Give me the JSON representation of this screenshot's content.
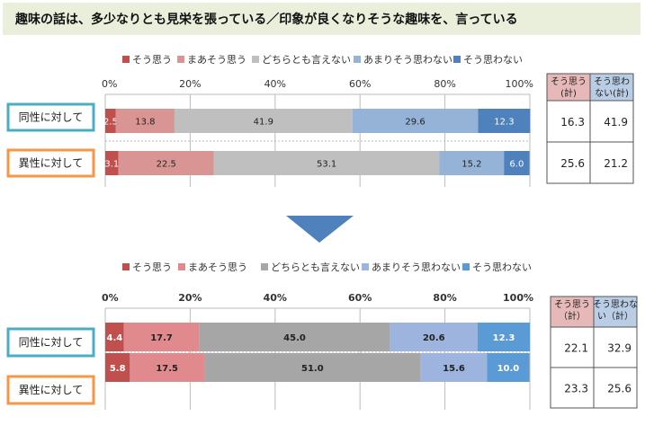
{
  "title": "趣味の話は、多少なりとも見栄を張っている／印象が良くなりそうな趣味を、言っている",
  "colors": {
    "title_bg": "#eaefdc",
    "series": [
      "#c0504d",
      "#d99593",
      "#bfbfbf",
      "#95b3d7",
      "#4f81bd"
    ],
    "series_bottom": [
      "#c0504d",
      "#e08a8d",
      "#a6a6a6",
      "#9cb4de",
      "#5b9bd5"
    ],
    "row_box_top": "#4bacc6",
    "row_box_bottom": "#f79646",
    "table_head_agree": "#e6b9b8",
    "table_head_disagree": "#b9cde5",
    "arrow": "#4f81bd"
  },
  "chart_data": [
    {
      "type": "bar",
      "stacked": true,
      "orientation": "horizontal",
      "legend": [
        "そう思う",
        "まあそう思う",
        "どちらとも言えない",
        "あまりそう思わない",
        "そう思わない"
      ],
      "xlim": [
        0,
        100
      ],
      "x_ticks": [
        "0%",
        "20%",
        "40%",
        "60%",
        "80%",
        "100%"
      ],
      "categories": [
        "同性に対して",
        "異性に対して"
      ],
      "series": [
        {
          "name": "そう思う",
          "values": [
            2.5,
            3.1
          ]
        },
        {
          "name": "まあそう思う",
          "values": [
            13.8,
            22.5
          ]
        },
        {
          "name": "どちらとも言えない",
          "values": [
            41.9,
            53.1
          ]
        },
        {
          "name": "あまりそう思わない",
          "values": [
            29.6,
            15.2
          ]
        },
        {
          "name": "そう思わない",
          "values": [
            12.3,
            6.0
          ]
        }
      ],
      "labels": [
        [
          "2.5",
          "13.8",
          "41.9",
          "29.6",
          "12.3"
        ],
        [
          "3.1",
          "22.5",
          "53.1",
          "15.2",
          "6.0"
        ]
      ],
      "table": {
        "headers": [
          "そう思う\n(計)",
          "そう思わ\nない(計)"
        ],
        "rows": [
          [
            "16.3",
            "41.9"
          ],
          [
            "25.6",
            "21.2"
          ]
        ]
      }
    },
    {
      "type": "bar",
      "stacked": true,
      "orientation": "horizontal",
      "legend": [
        "そう思う",
        "まあそう思う",
        "どちらとも言えない",
        "あまりそう思わない",
        "そう思わない"
      ],
      "xlim": [
        0,
        100
      ],
      "x_ticks": [
        "0%",
        "20%",
        "40%",
        "60%",
        "80%",
        "100%"
      ],
      "categories": [
        "同性に対して",
        "異性に対して"
      ],
      "series": [
        {
          "name": "そう思う",
          "values": [
            4.4,
            5.8
          ]
        },
        {
          "name": "まあそう思う",
          "values": [
            17.7,
            17.5
          ]
        },
        {
          "name": "どちらとも言えない",
          "values": [
            45.0,
            51.0
          ]
        },
        {
          "name": "あまりそう思わない",
          "values": [
            20.6,
            15.6
          ]
        },
        {
          "name": "そう思わない",
          "values": [
            12.3,
            10.0
          ]
        }
      ],
      "labels": [
        [
          "4.4",
          "17.7",
          "45.0",
          "20.6",
          "12.3"
        ],
        [
          "5.8",
          "17.5",
          "51.0",
          "15.6",
          "10.0"
        ]
      ],
      "table": {
        "headers": [
          "そう思う\n（計）",
          "そう思わな\nい（計）"
        ],
        "rows": [
          [
            "22.1",
            "32.9"
          ],
          [
            "23.3",
            "25.6"
          ]
        ]
      }
    }
  ]
}
